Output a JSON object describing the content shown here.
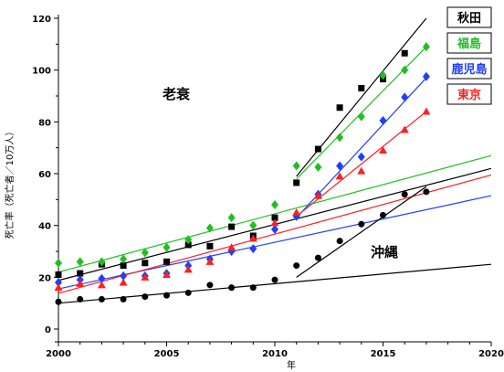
{
  "chart_data": {
    "type": "scatter",
    "title": "",
    "xlabel": "年",
    "ylabel": "死亡率（死亡者／10万人）",
    "xlim": [
      2000,
      2020
    ],
    "ylim": [
      0,
      120
    ],
    "xticks": [
      2000,
      2005,
      2010,
      2015,
      2020
    ],
    "yticks": [
      0,
      20,
      40,
      60,
      80,
      100,
      120
    ],
    "grid": false,
    "legend": "top-right",
    "annotations": [
      "老衰",
      "沖縄"
    ],
    "series": [
      {
        "name": "秋田",
        "color": "#000000",
        "marker": "square",
        "x": [
          2000,
          2001,
          2002,
          2003,
          2004,
          2005,
          2006,
          2007,
          2008,
          2009,
          2010,
          2011,
          2012,
          2013,
          2014,
          2015,
          2016
        ],
        "y": [
          21,
          21.5,
          25,
          24.5,
          25.5,
          26,
          32.5,
          32,
          39.5,
          36,
          43,
          56.5,
          69.5,
          85.5,
          93,
          96.5,
          106.5
        ],
        "trend": [
          [
            2000,
            18.8,
            2020,
            62
          ],
          [
            2011,
            59,
            2017,
            120
          ]
        ]
      },
      {
        "name": "福島",
        "color": "#1fbf1f",
        "marker": "diamond",
        "x": [
          2000,
          2001,
          2002,
          2003,
          2004,
          2005,
          2006,
          2007,
          2008,
          2009,
          2010,
          2011,
          2012,
          2013,
          2014,
          2015,
          2016,
          2017
        ],
        "y": [
          25.5,
          26,
          26,
          27,
          29.5,
          31.5,
          34.5,
          39,
          43,
          40,
          48,
          63,
          62.5,
          74,
          82,
          98,
          100,
          109
        ],
        "trend": [
          [
            2000,
            22,
            2020,
            67
          ],
          [
            2011,
            58,
            2017,
            109
          ]
        ]
      },
      {
        "name": "鹿児島",
        "color": "#1f3fff",
        "marker": "diamond",
        "x": [
          2000,
          2001,
          2002,
          2003,
          2004,
          2005,
          2006,
          2007,
          2008,
          2009,
          2010,
          2011,
          2012,
          2013,
          2014,
          2015,
          2016,
          2017
        ],
        "y": [
          18,
          19,
          19.5,
          20.5,
          20.5,
          21.5,
          24.5,
          27,
          30,
          31,
          38.5,
          43.5,
          52,
          63,
          66.5,
          80.5,
          89.5,
          97.5
        ],
        "trend": [
          [
            2000,
            15.5,
            2020,
            51.5
          ],
          [
            2011,
            43,
            2017,
            97
          ]
        ]
      },
      {
        "name": "東京",
        "color": "#ff1f1f",
        "marker": "triangle",
        "x": [
          2000,
          2001,
          2002,
          2003,
          2004,
          2005,
          2006,
          2007,
          2008,
          2009,
          2010,
          2011,
          2012,
          2013,
          2014,
          2015,
          2016,
          2017
        ],
        "y": [
          16,
          17.5,
          17,
          18,
          20,
          21,
          23,
          26,
          31.5,
          35,
          41,
          45,
          51.5,
          59,
          61,
          69,
          77,
          84
        ],
        "trend": [
          [
            2000,
            13.8,
            2020,
            59.5
          ],
          [
            2011,
            43.5,
            2017,
            84
          ]
        ]
      },
      {
        "name": "沖縄",
        "color": "#000000",
        "marker": "circle",
        "x": [
          2000,
          2001,
          2002,
          2003,
          2004,
          2005,
          2006,
          2007,
          2008,
          2009,
          2010,
          2011,
          2012,
          2013,
          2014,
          2015,
          2016,
          2017
        ],
        "y": [
          10.5,
          11.5,
          11.5,
          11.5,
          12.5,
          13,
          14,
          17,
          16,
          16,
          19,
          24.5,
          27.5,
          34,
          40.5,
          44,
          52,
          53
        ],
        "trend": [
          [
            2000,
            10,
            2020,
            25
          ],
          [
            2011,
            20,
            2017,
            55
          ]
        ]
      }
    ]
  }
}
